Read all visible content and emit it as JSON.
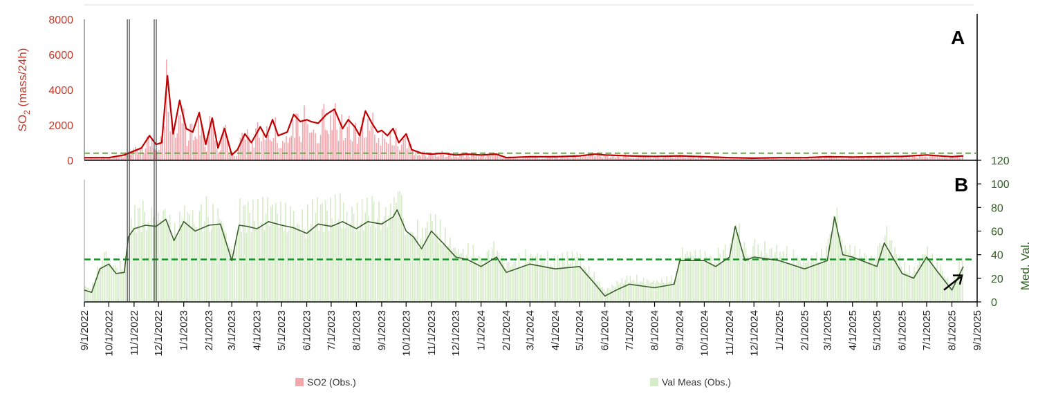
{
  "chart_data": [
    {
      "panel": "A",
      "type": "bar",
      "panel_label": "A",
      "ylabel_main": "SO",
      "ylabel_sub": "2",
      "ylabel_rest": " (mass/24h)",
      "ylim": [
        0,
        8000
      ],
      "yticks": [
        "0",
        "2000",
        "4000",
        "6000",
        "8000"
      ],
      "threshold": 400,
      "legend_label": "SO2 (Obs.)",
      "bar_color": "#f4a6ad",
      "line_color": "#c00000",
      "threshold_color": "#6aa84f",
      "series": [
        {
          "name": "SO2 (Obs.)",
          "x": [
            "2022-09-01",
            "2022-10-01",
            "2022-10-20",
            "2022-11-10",
            "2022-11-20",
            "2022-11-28",
            "2022-12-05",
            "2022-12-12",
            "2022-12-19",
            "2022-12-27",
            "2023-01-04",
            "2023-01-12",
            "2023-01-20",
            "2023-01-28",
            "2023-02-05",
            "2023-02-12",
            "2023-02-20",
            "2023-03-01",
            "2023-03-08",
            "2023-03-17",
            "2023-03-25",
            "2023-04-05",
            "2023-04-12",
            "2023-04-20",
            "2023-04-27",
            "2023-05-08",
            "2023-05-16",
            "2023-05-24",
            "2023-06-01",
            "2023-06-06",
            "2023-06-15",
            "2023-06-25",
            "2023-07-05",
            "2023-07-15",
            "2023-07-22",
            "2023-07-30",
            "2023-08-05",
            "2023-08-12",
            "2023-08-20",
            "2023-08-27",
            "2023-09-01",
            "2023-09-08",
            "2023-09-15",
            "2023-09-22",
            "2023-10-01",
            "2023-10-08",
            "2023-10-20",
            "2023-11-01",
            "2023-11-15",
            "2023-12-01",
            "2023-12-15",
            "2024-01-01",
            "2024-01-20",
            "2024-02-01",
            "2024-03-01",
            "2024-04-01",
            "2024-05-01",
            "2024-05-20",
            "2024-06-01",
            "2024-07-01",
            "2024-08-01",
            "2024-09-01",
            "2024-10-01",
            "2024-11-01",
            "2024-12-01",
            "2025-01-01",
            "2025-02-01",
            "2025-03-01",
            "2025-04-01",
            "2025-05-01",
            "2025-06-01",
            "2025-07-01",
            "2025-08-01",
            "2025-08-15"
          ],
          "values": [
            150,
            150,
            300,
            700,
            1400,
            900,
            1000,
            4800,
            1500,
            3400,
            1800,
            1600,
            2700,
            900,
            2400,
            700,
            1800,
            300,
            600,
            1500,
            1000,
            1900,
            1300,
            2300,
            1400,
            1600,
            2600,
            2200,
            2300,
            2200,
            2100,
            2600,
            2900,
            1800,
            2300,
            1900,
            1400,
            2800,
            2100,
            1600,
            1700,
            1400,
            1800,
            1000,
            1500,
            600,
            400,
            350,
            400,
            300,
            350,
            300,
            350,
            150,
            200,
            200,
            250,
            350,
            300,
            250,
            220,
            250,
            200,
            150,
            120,
            150,
            150,
            200,
            180,
            200,
            220,
            300,
            200,
            250
          ]
        }
      ]
    },
    {
      "panel": "B",
      "type": "bar",
      "panel_label": "B",
      "ylabel": "Med. Val.",
      "ylim": [
        0,
        120
      ],
      "yticks": [
        "0",
        "20",
        "40",
        "60",
        "80",
        "100",
        "120"
      ],
      "threshold": 36,
      "legend_label": "Val Meas (Obs.)",
      "bar_color": "#d6ebc8",
      "line_color": "#3a5f2a",
      "threshold_color": "#1a8f2a",
      "series": [
        {
          "name": "Val Meas (Obs.)",
          "x": [
            "2022-09-01",
            "2022-09-10",
            "2022-09-20",
            "2022-10-01",
            "2022-10-10",
            "2022-10-20",
            "2022-10-25",
            "2022-11-01",
            "2022-11-15",
            "2022-11-28",
            "2022-12-10",
            "2022-12-20",
            "2023-01-01",
            "2023-01-15",
            "2023-02-01",
            "2023-02-15",
            "2023-03-01",
            "2023-03-10",
            "2023-03-20",
            "2023-04-01",
            "2023-04-15",
            "2023-05-01",
            "2023-05-15",
            "2023-06-01",
            "2023-06-15",
            "2023-07-01",
            "2023-07-15",
            "2023-08-01",
            "2023-08-15",
            "2023-09-01",
            "2023-09-15",
            "2023-09-20",
            "2023-10-01",
            "2023-10-10",
            "2023-10-20",
            "2023-11-01",
            "2023-11-15",
            "2023-12-01",
            "2023-12-15",
            "2024-01-01",
            "2024-01-20",
            "2024-02-01",
            "2024-03-01",
            "2024-04-01",
            "2024-05-01",
            "2024-05-20",
            "2024-06-01",
            "2024-06-15",
            "2024-07-01",
            "2024-08-01",
            "2024-08-25",
            "2024-09-01",
            "2024-10-01",
            "2024-10-15",
            "2024-11-01",
            "2024-11-08",
            "2024-11-20",
            "2024-12-01",
            "2025-01-01",
            "2025-02-01",
            "2025-03-01",
            "2025-03-10",
            "2025-03-20",
            "2025-04-01",
            "2025-05-01",
            "2025-05-10",
            "2025-06-01",
            "2025-06-15",
            "2025-07-01",
            "2025-07-15",
            "2025-08-01",
            "2025-08-15"
          ],
          "values": [
            10,
            8,
            28,
            32,
            24,
            25,
            55,
            62,
            65,
            64,
            70,
            52,
            68,
            60,
            65,
            66,
            35,
            65,
            64,
            62,
            68,
            65,
            63,
            58,
            66,
            64,
            68,
            62,
            68,
            66,
            72,
            78,
            60,
            55,
            45,
            60,
            50,
            38,
            36,
            30,
            38,
            25,
            32,
            28,
            30,
            15,
            5,
            10,
            15,
            12,
            15,
            35,
            35,
            30,
            38,
            64,
            35,
            38,
            35,
            28,
            35,
            72,
            40,
            38,
            30,
            50,
            24,
            20,
            38,
            25,
            10,
            30
          ]
        }
      ]
    }
  ],
  "x_axis": {
    "tick_labels": [
      "9/1/2022",
      "10/1/2022",
      "11/1/2022",
      "12/1/2022",
      "1/1/2023",
      "2/1/2023",
      "3/1/2023",
      "4/1/2023",
      "5/1/2023",
      "6/1/2023",
      "7/1/2023",
      "8/1/2023",
      "9/1/2023",
      "10/1/2023",
      "11/1/2023",
      "12/1/2023",
      "1/1/2024",
      "2/1/2024",
      "3/1/2024",
      "4/1/2024",
      "5/1/2024",
      "6/1/2024",
      "7/1/2024",
      "8/1/2024",
      "9/1/2024",
      "10/1/2024",
      "11/1/2024",
      "12/1/2024",
      "1/1/2025",
      "2/1/2025",
      "3/1/2025",
      "4/1/2025",
      "5/1/2025",
      "6/1/2025",
      "7/1/2025",
      "8/1/2025",
      "9/1/2025"
    ]
  },
  "event_markers": [
    "2022-10-25",
    "2022-11-27"
  ],
  "arrow_target": "2025-08-15"
}
